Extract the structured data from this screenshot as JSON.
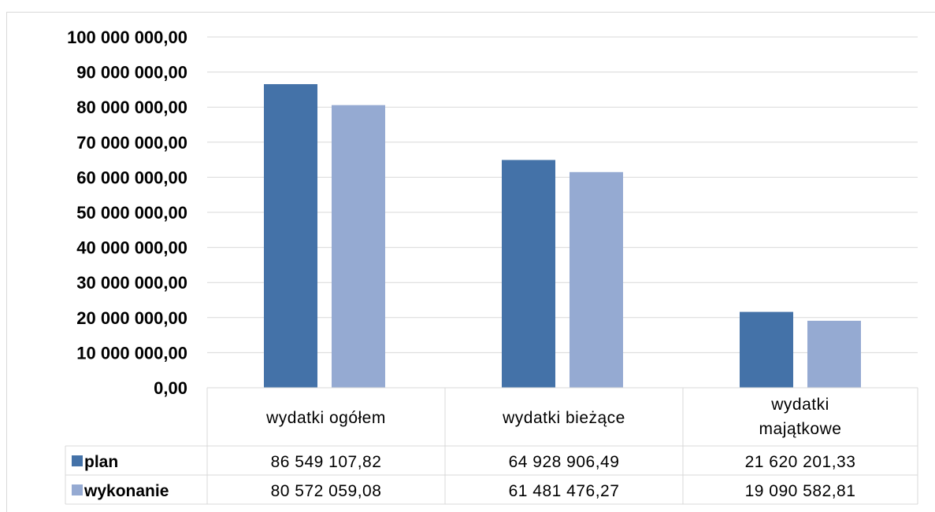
{
  "chart_data": {
    "type": "bar",
    "categories": [
      "wydatki ogółem",
      "wydatki bieżące",
      "wydatki majątkowe"
    ],
    "series": [
      {
        "name": "plan",
        "values": [
          86549107.82,
          64928906.49,
          21620201.33
        ],
        "labels": [
          "86 549 107,82",
          "64 928 906,49",
          "21 620 201,33"
        ],
        "color": "#4472a8"
      },
      {
        "name": "wykonanie",
        "values": [
          80572059.08,
          61481476.27,
          19090582.81
        ],
        "labels": [
          "80 572 059,08",
          "61 481 476,27",
          "19 090 582,81"
        ],
        "color": "#95aad2"
      }
    ],
    "yticks": [
      "0,00",
      "10 000 000,00",
      "20 000 000,00",
      "30 000 000,00",
      "40 000 000,00",
      "50 000 000,00",
      "60 000 000,00",
      "70 000 000,00",
      "80 000 000,00",
      "90 000 000,00",
      "100 000 000,00"
    ],
    "ylim": [
      0,
      100000000
    ],
    "grid": true,
    "legend": "data-table",
    "gridline_color": "#d9d9d9"
  }
}
